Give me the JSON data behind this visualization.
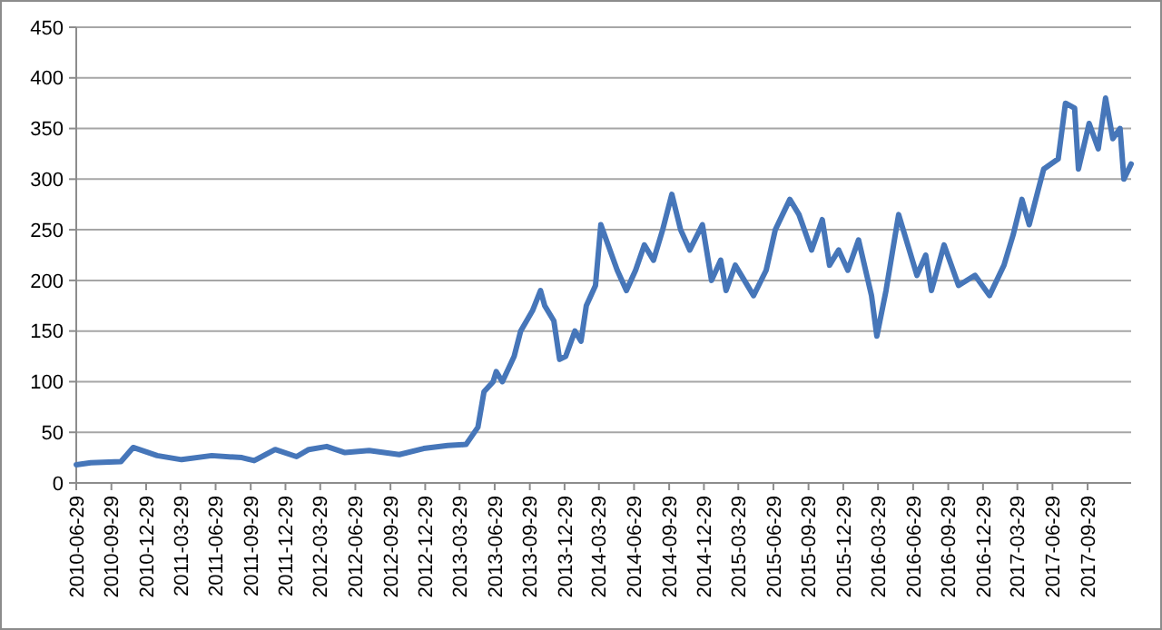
{
  "chart_data": {
    "type": "line",
    "x": [
      "2010-06-29",
      "2010-08-06",
      "2010-10-24",
      "2010-11-25",
      "2011-01-27",
      "2011-04-01",
      "2011-06-19",
      "2011-09-06",
      "2011-10-08",
      "2011-12-02",
      "2012-01-27",
      "2012-02-28",
      "2012-04-15",
      "2012-06-02",
      "2012-08-04",
      "2012-10-22",
      "2012-12-25",
      "2013-02-26",
      "2013-04-15",
      "2013-05-16",
      "2013-06-01",
      "2013-06-25",
      "2013-07-03",
      "2013-07-19",
      "2013-08-19",
      "2013-09-05",
      "2013-10-06",
      "2013-10-27",
      "2013-11-07",
      "2013-12-01",
      "2013-12-16",
      "2014-01-01",
      "2014-01-25",
      "2014-02-10",
      "2014-02-24",
      "2014-03-20",
      "2014-04-03",
      "2014-04-22",
      "2014-05-16",
      "2014-06-09",
      "2014-07-03",
      "2014-07-26",
      "2014-08-19",
      "2014-09-12",
      "2014-10-06",
      "2014-10-29",
      "2014-11-22",
      "2014-12-25",
      "2015-01-18",
      "2015-02-11",
      "2015-02-25",
      "2015-03-21",
      "2015-05-08",
      "2015-06-10",
      "2015-07-04",
      "2015-08-11",
      "2015-09-04",
      "2015-10-07",
      "2015-11-04",
      "2015-11-23",
      "2015-12-17",
      "2016-01-10",
      "2016-02-07",
      "2016-03-12",
      "2016-03-26",
      "2016-04-19",
      "2016-05-22",
      "2016-06-15",
      "2016-07-09",
      "2016-08-01",
      "2016-08-16",
      "2016-09-18",
      "2016-10-26",
      "2016-12-08",
      "2017-01-15",
      "2017-02-22",
      "2017-03-18",
      "2017-04-10",
      "2017-04-29",
      "2017-05-23",
      "2017-06-06",
      "2017-07-14",
      "2017-08-02",
      "2017-08-26",
      "2017-09-05",
      "2017-10-03",
      "2017-10-27",
      "2017-11-15",
      "2017-12-04",
      "2017-12-23",
      "2018-01-02",
      "2018-01-21"
    ],
    "series": [
      {
        "color": "#4676b9",
        "values": [
          18,
          20,
          21,
          35,
          27,
          23,
          27,
          25,
          22,
          33,
          26,
          33,
          36,
          30,
          32,
          28,
          34,
          37,
          38,
          55,
          90,
          100,
          110,
          100,
          125,
          150,
          170,
          190,
          175,
          160,
          122,
          125,
          150,
          140,
          175,
          195,
          255,
          235,
          210,
          190,
          210,
          235,
          220,
          250,
          285,
          250,
          230,
          255,
          200,
          220,
          190,
          215,
          185,
          210,
          250,
          280,
          265,
          230,
          260,
          215,
          230,
          210,
          240,
          185,
          145,
          190,
          265,
          235,
          205,
          225,
          190,
          235,
          195,
          205,
          185,
          215,
          245,
          280,
          255,
          290,
          310,
          320,
          375,
          370,
          310,
          355,
          330,
          380,
          340,
          350,
          300,
          315
        ]
      }
    ],
    "xlim": [
      "2010-06-29",
      "2018-01-21"
    ],
    "xticks": [
      "2010-06-29",
      "2010-09-29",
      "2010-12-29",
      "2011-03-29",
      "2011-06-29",
      "2011-09-29",
      "2011-12-29",
      "2012-03-29",
      "2012-06-29",
      "2012-09-29",
      "2012-12-29",
      "2013-03-29",
      "2013-06-29",
      "2013-09-29",
      "2013-12-29",
      "2014-03-29",
      "2014-06-29",
      "2014-09-29",
      "2014-12-29",
      "2015-03-29",
      "2015-06-29",
      "2015-09-29",
      "2015-12-29",
      "2016-03-29",
      "2016-06-29",
      "2016-09-29",
      "2016-12-29",
      "2017-03-29",
      "2017-06-29",
      "2017-09-29"
    ],
    "ylim": [
      0,
      450
    ],
    "yticks": [
      0,
      50,
      100,
      150,
      200,
      250,
      300,
      350,
      400,
      450
    ],
    "grid": "y",
    "marker": "none",
    "line_style": "solid"
  }
}
